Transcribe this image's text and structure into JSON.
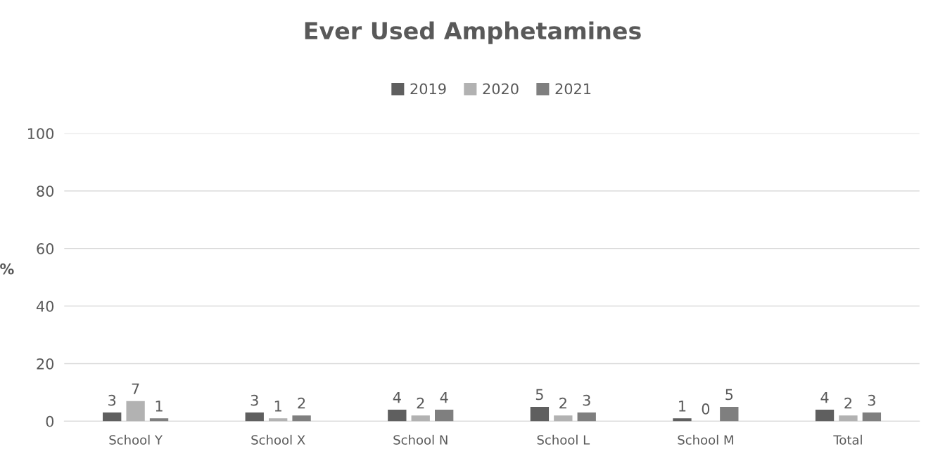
{
  "chart_data": {
    "type": "bar",
    "title": "Ever Used Amphetamines",
    "ylabel": "%",
    "categories": [
      "School Y",
      "School X",
      "School N",
      "School L",
      "School M",
      "Total"
    ],
    "series": [
      {
        "name": "2019",
        "color": "#5f5f5f",
        "values": [
          3,
          3,
          4,
          5,
          1,
          4
        ]
      },
      {
        "name": "2020",
        "color": "#b2b2b2",
        "values": [
          7,
          1,
          2,
          2,
          0,
          2
        ]
      },
      {
        "name": "2021",
        "color": "#7f7f7f",
        "values": [
          1,
          2,
          4,
          3,
          5,
          3
        ]
      }
    ],
    "ylim": [
      0,
      100
    ],
    "yticks": [
      0,
      20,
      40,
      60,
      80,
      100
    ],
    "grid": "y",
    "legend": "top",
    "data_labels": true
  }
}
